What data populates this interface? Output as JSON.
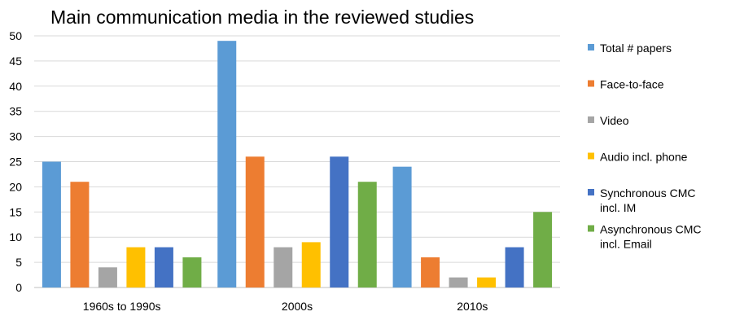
{
  "chart_data": {
    "type": "bar",
    "title": "Main communication media in the reviewed studies",
    "xlabel": "",
    "ylabel": "",
    "ylim": [
      0,
      50
    ],
    "yticks": [
      0,
      5,
      10,
      15,
      20,
      25,
      30,
      35,
      40,
      45,
      50
    ],
    "grid": true,
    "legend_placement": "right",
    "categories": [
      "1960s to 1990s",
      "2000s",
      "2010s"
    ],
    "series": [
      {
        "name": "Total # papers",
        "legend_lines": [
          "Total # papers"
        ],
        "color": "#5b9bd5",
        "values": [
          25,
          49,
          24
        ]
      },
      {
        "name": "Face-to-face",
        "legend_lines": [
          "Face-to-face"
        ],
        "color": "#ed7d31",
        "values": [
          21,
          26,
          6
        ]
      },
      {
        "name": "Video",
        "legend_lines": [
          "Video"
        ],
        "color": "#a5a5a5",
        "values": [
          4,
          8,
          2
        ]
      },
      {
        "name": "Audio incl. phone",
        "legend_lines": [
          "Audio incl. phone"
        ],
        "color": "#ffc000",
        "values": [
          8,
          9,
          2
        ]
      },
      {
        "name": "Synchronous CMC incl. IM",
        "legend_lines": [
          "Synchronous CMC",
          "incl. IM"
        ],
        "color": "#4472c4",
        "values": [
          8,
          26,
          8
        ]
      },
      {
        "name": "Asynchronous CMC incl. Email",
        "legend_lines": [
          "Asynchronous CMC",
          "incl. Email"
        ],
        "color": "#70ad47",
        "values": [
          6,
          21,
          15
        ]
      }
    ]
  }
}
